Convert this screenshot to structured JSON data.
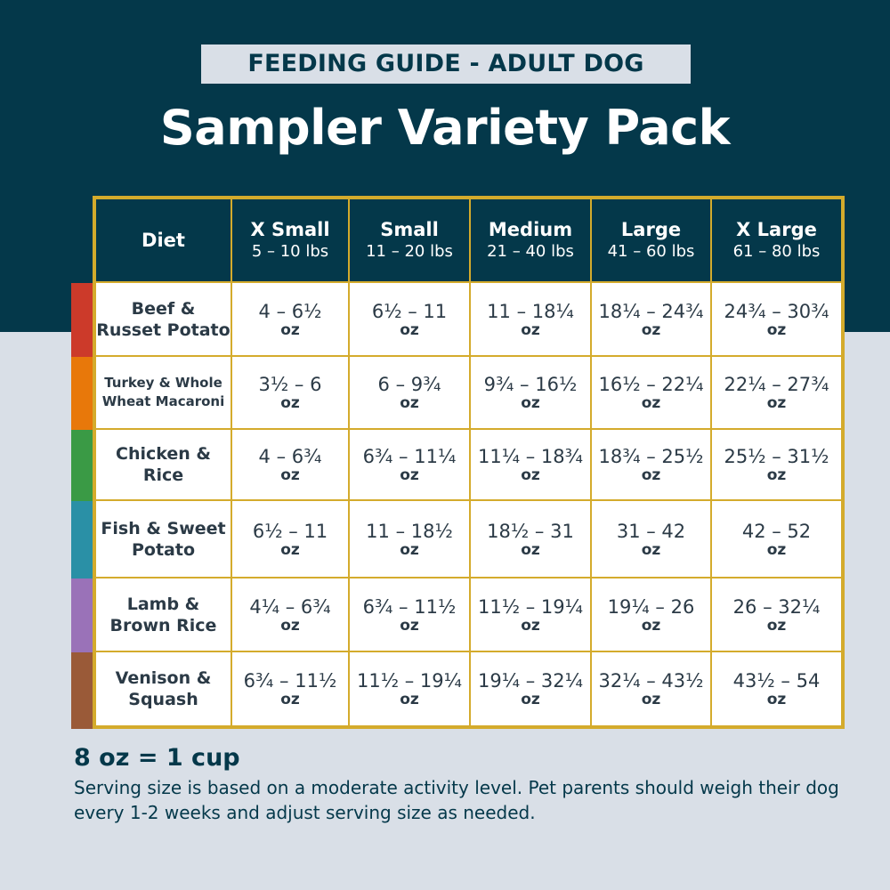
{
  "header": {
    "badge": "FEEDING GUIDE - ADULT DOG",
    "title": "Sampler Variety Pack"
  },
  "colors": {
    "background_dark": "#04384a",
    "background_light": "#d9dfe7",
    "border_gold": "#d4ab2c"
  },
  "table": {
    "diet_header": "Diet",
    "unit": "oz",
    "columns": [
      {
        "size": "X Small",
        "range": "5 – 10 lbs"
      },
      {
        "size": "Small",
        "range": "11 – 20 lbs"
      },
      {
        "size": "Medium",
        "range": "21 – 40 lbs"
      },
      {
        "size": "Large",
        "range": "41 – 60 lbs"
      },
      {
        "size": "X Large",
        "range": "61 – 80 lbs"
      }
    ],
    "rows": [
      {
        "diet": "Beef & Russet Potato",
        "color": "#cc3a2a",
        "values": [
          "4 – 6½",
          "6½ – 11",
          "11 – 18¼",
          "18¼ – 24¾",
          "24¾ – 30¾"
        ]
      },
      {
        "diet": "Turkey & Whole Wheat Macaroni",
        "color": "#e8780a",
        "values": [
          "3½ – 6",
          "6 – 9¾",
          "9¾ – 16½",
          "16½ – 22¼",
          "22¼ – 27¾"
        ]
      },
      {
        "diet": "Chicken & Rice",
        "color": "#3a9a45",
        "values": [
          "4 – 6¾",
          "6¾ – 11¼",
          "11¼ – 18¾",
          "18¾ – 25½",
          "25½ – 31½"
        ]
      },
      {
        "diet": "Fish & Sweet Potato",
        "color": "#2a90a6",
        "values": [
          "6½ – 11",
          "11 – 18½",
          "18½ – 31",
          "31 – 42",
          "42 – 52"
        ]
      },
      {
        "diet": "Lamb & Brown Rice",
        "color": "#9a72b8",
        "values": [
          "4¼ – 6¾",
          "6¾ – 11½",
          "11½ – 19¼",
          "19¼ – 26",
          "26 – 32¼"
        ]
      },
      {
        "diet": "Venison & Squash",
        "color": "#9a5a38",
        "values": [
          "6¾ – 11½",
          "11½ – 19¼",
          "19¼ – 32¼",
          "32¼ – 43½",
          "43½ – 54"
        ]
      }
    ]
  },
  "footer": {
    "conversion": "8 oz = 1 cup",
    "note": "Serving size is based on a moderate activity level. Pet parents should weigh their dog every 1-2 weeks and adjust serving size as needed."
  }
}
